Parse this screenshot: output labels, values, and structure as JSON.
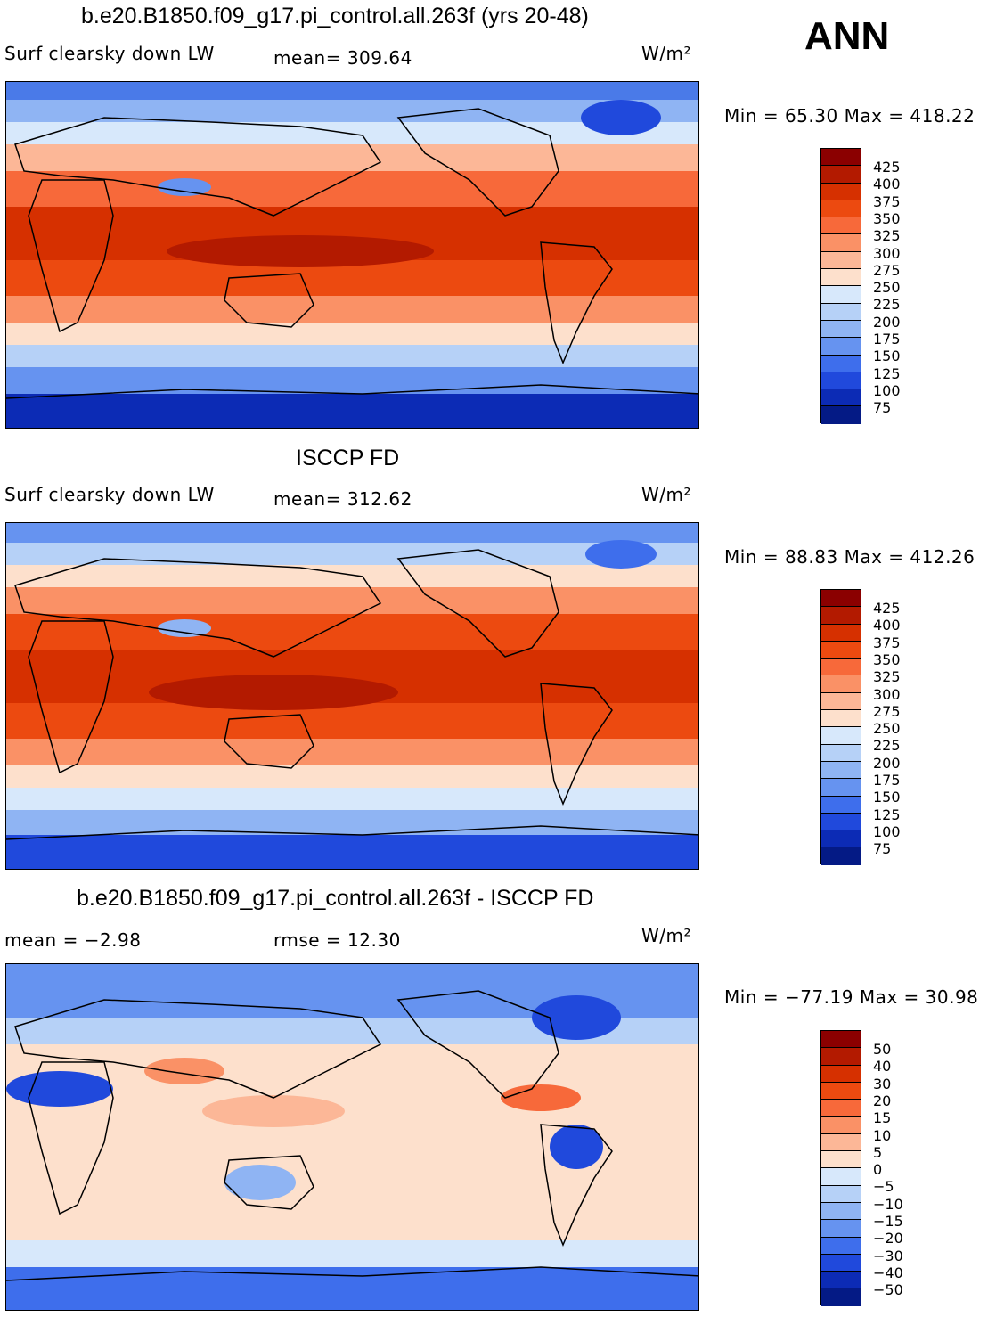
{
  "season": "ANN",
  "units": "W/m²",
  "chart_data": [
    {
      "type": "heatmap",
      "title": "b.e20.B1850.f09_g17.pi_control.all.263f (yrs 20-48)",
      "left_label": "Surf clearsky down LW",
      "stat_label": "mean= 309.64",
      "min_max": "Min =  65.30 Max = 418.22",
      "units": "W/m²",
      "mean": 309.64,
      "min": 65.3,
      "max": 418.22,
      "colorbar_ticks": [
        "425",
        "400",
        "375",
        "350",
        "325",
        "300",
        "275",
        "250",
        "225",
        "200",
        "175",
        "150",
        "125",
        "100",
        "75"
      ],
      "colorbar_colors": [
        "#8b0000",
        "#b31a00",
        "#d63000",
        "#ec4a10",
        "#f7693a",
        "#fa9166",
        "#fcb797",
        "#fde0cc",
        "#d7e8fb",
        "#b6d1f7",
        "#8fb4f3",
        "#6693f0",
        "#3e6eec",
        "#2049dc",
        "#0c2bb5",
        "#041a85"
      ]
    },
    {
      "type": "heatmap",
      "title": "ISCCP FD",
      "left_label": "Surf clearsky down LW",
      "stat_label": "mean= 312.62",
      "min_max": "Min =  88.83 Max = 412.26",
      "units": "W/m²",
      "mean": 312.62,
      "min": 88.83,
      "max": 412.26,
      "colorbar_ticks": [
        "425",
        "400",
        "375",
        "350",
        "325",
        "300",
        "275",
        "250",
        "225",
        "200",
        "175",
        "150",
        "125",
        "100",
        "75"
      ],
      "colorbar_colors": [
        "#8b0000",
        "#b31a00",
        "#d63000",
        "#ec4a10",
        "#f7693a",
        "#fa9166",
        "#fcb797",
        "#fde0cc",
        "#d7e8fb",
        "#b6d1f7",
        "#8fb4f3",
        "#6693f0",
        "#3e6eec",
        "#2049dc",
        "#0c2bb5",
        "#041a85"
      ]
    },
    {
      "type": "heatmap",
      "title": "b.e20.B1850.f09_g17.pi_control.all.263f - ISCCP FD",
      "left_label": "mean =   −2.98",
      "stat_label": "rmse =   12.30",
      "min_max": "Min = −77.19 Max =  30.98",
      "units": "W/m²",
      "mean": -2.98,
      "rmse": 12.3,
      "min": -77.19,
      "max": 30.98,
      "colorbar_ticks": [
        "50",
        "40",
        "30",
        "20",
        "15",
        "10",
        "5",
        "0",
        "−5",
        "−10",
        "−15",
        "−20",
        "−30",
        "−40",
        "−50"
      ],
      "colorbar_colors": [
        "#8b0000",
        "#b31a00",
        "#d63000",
        "#ec4a10",
        "#f7693a",
        "#fa9166",
        "#fcb797",
        "#fde0cc",
        "#d7e8fb",
        "#b6d1f7",
        "#8fb4f3",
        "#6693f0",
        "#3e6eec",
        "#2049dc",
        "#0c2bb5",
        "#041a85"
      ]
    }
  ]
}
